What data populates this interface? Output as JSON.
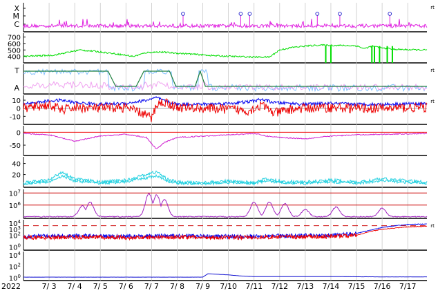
{
  "chart_data": [
    {
      "type": "line",
      "panel": "xmc-flare-index",
      "y_tick_labels": [
        "X",
        "M",
        "C"
      ],
      "right_mark": "rt",
      "color": "#e020e0",
      "marker_color": "#3030d0",
      "flare_marker_days": [
        8.23,
        10.48,
        10.83,
        13.47,
        14.35,
        16.3
      ],
      "baseline_values": [
        0.25,
        0.3,
        0.28,
        0.32,
        0.35,
        0.3,
        0.33,
        0.31,
        0.34,
        0.32,
        0.36,
        0.35,
        0.37,
        0.33,
        0.35,
        0.34
      ]
    },
    {
      "type": "line",
      "panel": "solar-wind-speed",
      "y_ticks": [
        400,
        500,
        600,
        700
      ],
      "ylim": [
        300,
        760
      ],
      "color": "#00dd00",
      "x": [
        2.0,
        3.2,
        3.8,
        4.2,
        5.0,
        5.8,
        6.3,
        6.8,
        7.3,
        8.0,
        8.8,
        9.5,
        10.2,
        11.0,
        11.6,
        12.0,
        12.5,
        13.0,
        13.5,
        14.3,
        15.0,
        15.3,
        15.6,
        16.0,
        16.5,
        17.5
      ],
      "values": [
        400,
        420,
        470,
        500,
        470,
        430,
        400,
        460,
        470,
        450,
        430,
        410,
        400,
        390,
        390,
        500,
        540,
        560,
        575,
        570,
        565,
        520,
        560,
        530,
        510,
        500
      ]
    },
    {
      "type": "line",
      "panel": "imf-sector",
      "y_tick_labels": [
        "T",
        "A"
      ],
      "right_mark": "rt",
      "series": [
        {
          "color": "#80c0ff"
        },
        {
          "color": "#f0a0f0"
        },
        {
          "color": "#208040"
        }
      ]
    },
    {
      "type": "line",
      "panel": "imf-bt-bz",
      "y_ticks": [
        -10,
        0,
        10
      ],
      "ylim": [
        -20,
        16
      ],
      "right_mark": "rt",
      "series": [
        {
          "color": "#0000ee",
          "x": [
            2.0,
            2.5,
            3.0,
            3.5,
            4.0,
            5.0,
            6.0,
            6.8,
            7.2,
            7.6,
            8.0,
            9.0,
            10.0,
            10.8,
            11.3,
            11.8,
            12.5,
            13.0,
            14.0,
            15.0,
            16.0,
            17.7
          ],
          "values": [
            6,
            7,
            9,
            10,
            7,
            5,
            6,
            10,
            13,
            8,
            5,
            5,
            6,
            8,
            11,
            7,
            6,
            5,
            6,
            5,
            5,
            6
          ]
        },
        {
          "color": "#ee0000",
          "x": [
            2.0,
            2.5,
            3.0,
            3.5,
            4.0,
            5.0,
            6.0,
            6.8,
            7.0,
            7.2,
            7.5,
            8.0,
            9.0,
            10.0,
            10.8,
            11.3,
            11.8,
            12.5,
            13.0,
            14.0,
            15.0,
            16.0,
            17.7
          ],
          "values": [
            0,
            2,
            4,
            -2,
            1,
            0,
            1,
            -8,
            -13,
            5,
            8,
            1,
            0,
            -1,
            -3,
            4,
            -6,
            -1,
            0,
            1,
            0,
            0,
            1
          ]
        }
      ]
    },
    {
      "type": "line",
      "panel": "dst-index",
      "y_ticks": [
        -50,
        0
      ],
      "ylim": [
        -90,
        25
      ],
      "reference_line": 0,
      "color": "#d020d0",
      "reference_color": "#ee0000",
      "x": [
        2.0,
        3.0,
        4.0,
        5.0,
        6.0,
        6.8,
        7.0,
        7.2,
        7.5,
        8.0,
        9.0,
        10.0,
        11.0,
        11.5,
        12.0,
        13.0,
        14.0,
        15.0,
        16.0,
        17.7
      ],
      "values": [
        -5,
        -10,
        -35,
        -15,
        -8,
        -20,
        -45,
        -65,
        -40,
        -20,
        -15,
        -10,
        -5,
        -15,
        -20,
        -25,
        -15,
        -10,
        -8,
        -5
      ]
    },
    {
      "type": "line",
      "panel": "kp-like-index",
      "y_ticks": [
        20,
        40
      ],
      "ylim": [
        -3,
        52
      ],
      "color": "#20d0e0",
      "x": [
        2.0,
        3.0,
        3.5,
        4.0,
        5.0,
        6.0,
        6.8,
        7.2,
        7.6,
        8.0,
        9.0,
        10.0,
        11.0,
        11.5,
        12.0,
        13.0,
        14.0,
        15.0,
        16.0,
        17.7
      ],
      "values": [
        5,
        10,
        25,
        12,
        6,
        10,
        20,
        25,
        12,
        6,
        5,
        8,
        6,
        12,
        8,
        6,
        10,
        6,
        12,
        6
      ]
    },
    {
      "type": "line",
      "panel": "electron-flux",
      "y_ticks": [
        1000000,
        10000000
      ],
      "y_tick_labels": [
        "10^6",
        "10^7"
      ],
      "ylim_log10": [
        4.9,
        7.3
      ],
      "color": "#a020c0",
      "threshold_color": "#cc0000"
    },
    {
      "type": "line",
      "panel": "proton-flux",
      "y_ticks": [
        1,
        100,
        1000,
        10000
      ],
      "y_tick_labels": [
        "10^0",
        "10^2",
        "10^3",
        "10^4"
      ],
      "right_mark": "rt",
      "threshold_color": "#cc0000",
      "series": [
        {
          "color": "#0000ee",
          "x": [
            2.0,
            4.0,
            6.0,
            8.0,
            10.0,
            12.0,
            14.0,
            15.0,
            15.5,
            16.0,
            16.5,
            17.0,
            17.7
          ],
          "values_log10": [
            1.8,
            1.9,
            1.8,
            1.9,
            1.8,
            1.9,
            2.0,
            2.3,
            2.8,
            3.3,
            3.6,
            3.8,
            3.9
          ]
        },
        {
          "color": "#ee0000",
          "x": [
            2.0,
            4.0,
            6.0,
            8.0,
            10.0,
            12.0,
            14.0,
            15.0,
            15.5,
            16.0,
            16.5,
            17.0,
            17.7
          ],
          "values_log10": [
            1.6,
            1.7,
            1.6,
            1.7,
            1.6,
            1.7,
            1.8,
            2.0,
            2.6,
            3.0,
            3.2,
            3.4,
            3.5
          ]
        }
      ]
    },
    {
      "type": "line",
      "panel": "neutron-monitor",
      "y_ticks": [
        1,
        100,
        10000
      ],
      "y_tick_labels": [
        "10^0",
        "10^2",
        "10^4"
      ],
      "color": "#1010d0",
      "x": [
        2.0,
        4.0,
        6.0,
        8.0,
        9.0,
        9.2,
        10.0,
        10.5,
        11.0,
        12.0,
        14.0,
        16.0,
        17.7
      ],
      "values_log10": [
        0.1,
        0.1,
        0.1,
        0.1,
        0.1,
        0.7,
        0.5,
        0.3,
        0.2,
        0.2,
        0.2,
        0.15,
        0.15
      ]
    }
  ],
  "x_axis": {
    "year_label": "2022",
    "tick_labels": [
      "7/ 3",
      "7/ 4",
      "7/ 5",
      "7/ 6",
      "7/ 7",
      "7/ 8",
      "7/ 9",
      "7/10",
      "7/11",
      "7/12",
      "7/13",
      "7/14",
      "7/15",
      "7/16",
      "7/17"
    ]
  }
}
